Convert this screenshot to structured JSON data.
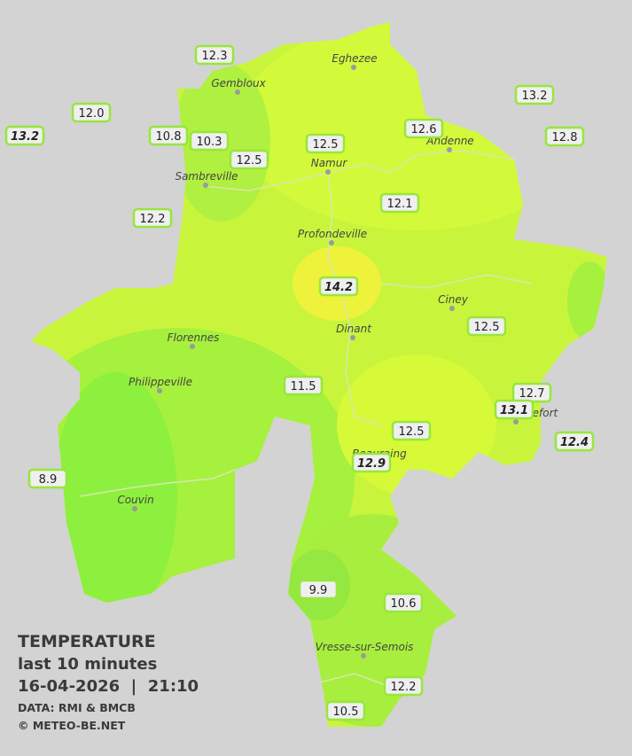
{
  "legend": {
    "title": "TEMPERATURE",
    "period": "last 10 minutes",
    "datetime": "16-04-2026  |  21:10",
    "source": "DATA: RMI & BMCB",
    "copyright": "© METEO-BE.NET"
  },
  "places": [
    "Eghezee",
    "Gembloux",
    "Andenne",
    "Namur",
    "Sambreville",
    "Profondeville",
    "Ciney",
    "Dinant",
    "Florennes",
    "Philippeville",
    "Rochefort",
    "Beauraing",
    "Couvin",
    "Vresse-sur-Semois"
  ],
  "stations": [
    12.3,
    {
      "value": 12,
      "label": "12.0"
    },
    13.2,
    10.8,
    10.3,
    12.5,
    12.5,
    12.6,
    13.2,
    12.8,
    12.1,
    12.2,
    14.2,
    12.5,
    11.5,
    12.7,
    13.1,
    12.5,
    12.4,
    12.9,
    8.9,
    9.9,
    10.6,
    12.2,
    10.5
  ]
}
